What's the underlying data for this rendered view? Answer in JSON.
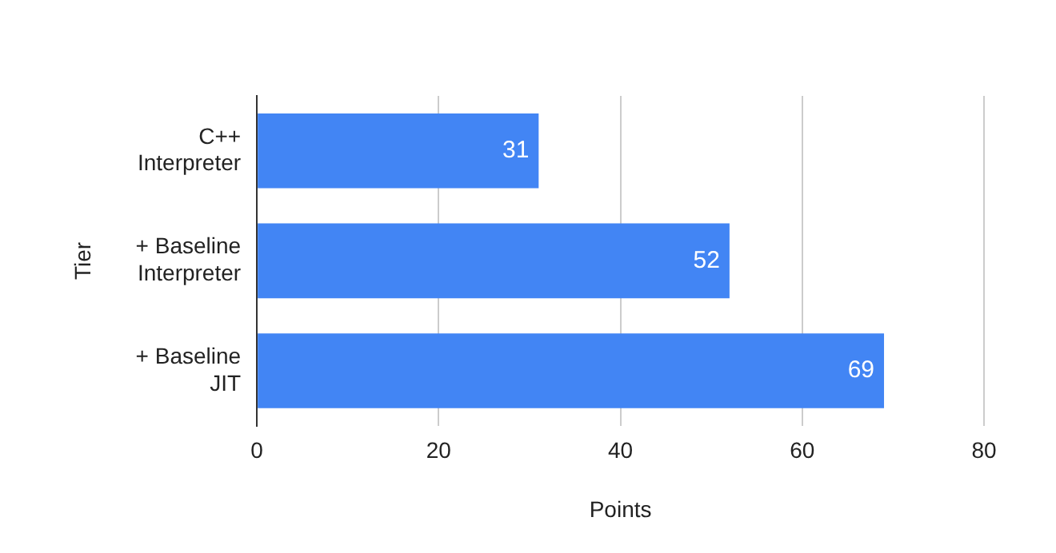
{
  "chart_data": {
    "type": "bar",
    "orientation": "horizontal",
    "categories": [
      "C++ Interpreter",
      "+ Baseline Interpreter",
      "+ Baseline JIT"
    ],
    "values": [
      31,
      52,
      69
    ],
    "color": "#4285f4",
    "xlim": [
      0,
      80
    ],
    "xticks": [
      0,
      20,
      40,
      60,
      80
    ],
    "xlabel": "Points",
    "ylabel": "Tier",
    "grid": "x",
    "legend": false,
    "data_labels": true
  }
}
